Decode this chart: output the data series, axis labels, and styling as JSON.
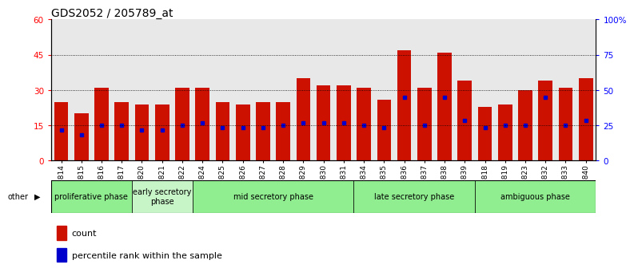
{
  "title": "GDS2052 / 205789_at",
  "samples": [
    "GSM109814",
    "GSM109815",
    "GSM109816",
    "GSM109817",
    "GSM109820",
    "GSM109821",
    "GSM109822",
    "GSM109824",
    "GSM109825",
    "GSM109826",
    "GSM109827",
    "GSM109828",
    "GSM109829",
    "GSM109830",
    "GSM109831",
    "GSM109834",
    "GSM109835",
    "GSM109836",
    "GSM109837",
    "GSM109838",
    "GSM109839",
    "GSM109818",
    "GSM109819",
    "GSM109823",
    "GSM109832",
    "GSM109833",
    "GSM109840"
  ],
  "count_values": [
    25,
    20,
    31,
    25,
    24,
    24,
    31,
    31,
    25,
    24,
    25,
    25,
    35,
    32,
    32,
    31,
    26,
    47,
    31,
    46,
    34,
    23,
    24,
    30,
    34,
    31,
    35
  ],
  "percentile_values": [
    13,
    11,
    15,
    15,
    13,
    13,
    15,
    16,
    14,
    14,
    14,
    15,
    16,
    16,
    16,
    15,
    14,
    27,
    15,
    27,
    17,
    14,
    15,
    15,
    27,
    15,
    17
  ],
  "phases": [
    {
      "label": "proliferative phase",
      "start": 0,
      "end": 4,
      "color": "#90ee90"
    },
    {
      "label": "early secretory\nphase",
      "start": 4,
      "end": 7,
      "color": "#c8f5c8"
    },
    {
      "label": "mid secretory phase",
      "start": 7,
      "end": 15,
      "color": "#90ee90"
    },
    {
      "label": "late secretory phase",
      "start": 15,
      "end": 21,
      "color": "#90ee90"
    },
    {
      "label": "ambiguous phase",
      "start": 21,
      "end": 27,
      "color": "#90ee90"
    }
  ],
  "bar_color": "#cc1100",
  "percentile_color": "#0000cc",
  "left_ylim": [
    0,
    60
  ],
  "right_ylim": [
    0,
    100
  ],
  "left_yticks": [
    0,
    15,
    30,
    45,
    60
  ],
  "right_yticks": [
    0,
    25,
    50,
    75,
    100
  ],
  "right_yticklabels": [
    "0",
    "25",
    "50",
    "75",
    "100%"
  ],
  "grid_values": [
    15,
    30,
    45
  ],
  "bar_width": 0.7,
  "title_fontsize": 10,
  "tick_fontsize": 6.5,
  "phase_fontsize": 7,
  "other_label": "other",
  "legend_count_label": "count",
  "legend_percentile_label": "percentile rank within the sample"
}
